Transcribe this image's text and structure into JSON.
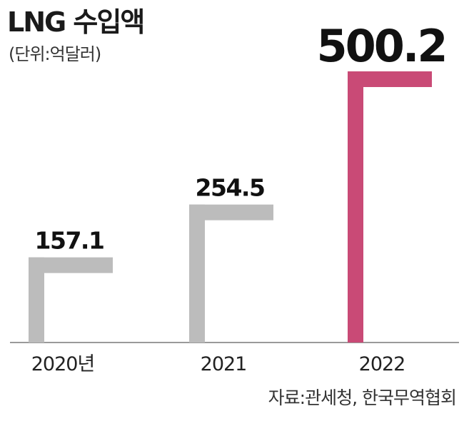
{
  "chart_data": {
    "type": "bar",
    "title": "LNG 수입액",
    "subtitle": "(단위:억달러)",
    "categories": [
      "2020년",
      "2021",
      "2022"
    ],
    "values": [
      157.1,
      254.5,
      500.2
    ],
    "value_labels": [
      "157.1",
      "254.5",
      "500.2"
    ],
    "highlight_index": 2,
    "ylim": [
      0,
      500.2
    ],
    "grid": false,
    "legend": "none",
    "source": "자료:관세청, 한국무역협회"
  },
  "colors": {
    "bar": "#bcbcbc",
    "highlight": "#c94a76",
    "baseline": "#9a9a9a",
    "text": "#111111"
  }
}
